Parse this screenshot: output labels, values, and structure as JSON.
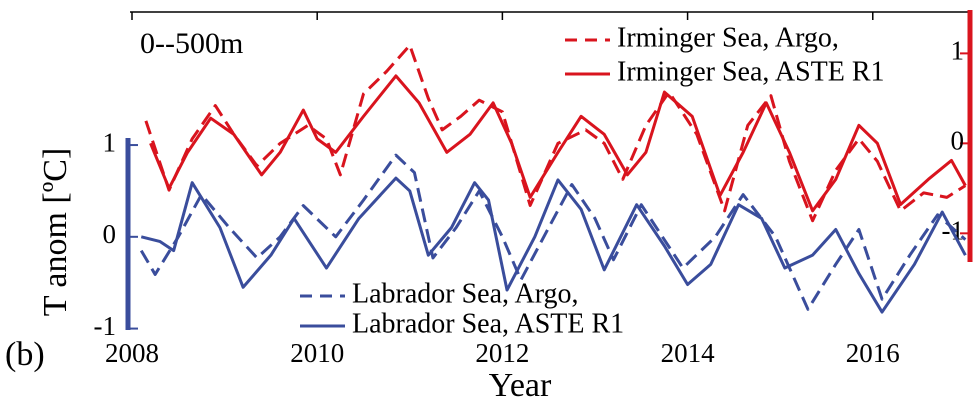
{
  "chart_data": {
    "type": "line",
    "annotation": "0--500m",
    "panel_label": "(b)",
    "xlabel": "Year",
    "ylabel": "T anom [ºC]",
    "xlim": [
      2008,
      2017.05
    ],
    "xticks": [
      2008,
      2010,
      2012,
      2014,
      2016
    ],
    "ylim": [
      -1.07,
      2.45
    ],
    "yticks": [
      -1,
      0,
      1
    ],
    "ycolor": "#3a4d9c",
    "y2lim": [
      -2.13,
      1.46
    ],
    "y2ticks": [
      -1,
      0,
      1
    ],
    "y2color": "#d9141e",
    "series": [
      {
        "name": "Irminger Sea, Argo,",
        "color": "#d9141e",
        "axis": "y2",
        "dash": true,
        "x": [
          2008.15,
          2008.4,
          2008.65,
          2008.9,
          2009.1,
          2009.35,
          2009.6,
          2009.9,
          2010.1,
          2010.25,
          2010.5,
          2010.75,
          2011.0,
          2011.2,
          2011.35,
          2011.55,
          2011.75,
          2012.0,
          2012.3,
          2012.6,
          2012.9,
          2013.1,
          2013.3,
          2013.55,
          2013.8,
          2014.1,
          2014.4,
          2014.65,
          2014.9,
          2015.1,
          2015.35,
          2015.6,
          2015.85,
          2016.05,
          2016.3,
          2016.55,
          2016.8,
          2017.0
        ],
        "values": [
          0.25,
          -0.52,
          0.05,
          0.42,
          0.1,
          -0.25,
          0.0,
          0.2,
          0.05,
          -0.35,
          0.55,
          0.8,
          1.09,
          0.5,
          0.15,
          0.3,
          0.48,
          0.35,
          -0.69,
          0.0,
          0.15,
          0.0,
          -0.4,
          0.2,
          0.57,
          0.1,
          -0.75,
          0.2,
          0.53,
          -0.2,
          -0.86,
          -0.3,
          0.05,
          -0.2,
          -0.75,
          -0.55,
          -0.6,
          -0.47
        ]
      },
      {
        "name": "Irminger Sea, ASTE R1",
        "color": "#d9141e",
        "axis": "y2",
        "dash": false,
        "x": [
          2008.2,
          2008.4,
          2008.6,
          2008.85,
          2009.1,
          2009.4,
          2009.6,
          2009.85,
          2010.0,
          2010.2,
          2010.5,
          2010.85,
          2011.1,
          2011.4,
          2011.65,
          2011.9,
          2012.1,
          2012.3,
          2012.6,
          2012.85,
          2013.1,
          2013.35,
          2013.55,
          2013.75,
          2014.05,
          2014.35,
          2014.6,
          2014.85,
          2015.1,
          2015.35,
          2015.6,
          2015.85,
          2016.05,
          2016.3,
          2016.6,
          2016.85,
          2017.0
        ],
        "values": [
          0.0,
          -0.5,
          -0.1,
          0.28,
          0.1,
          -0.35,
          -0.1,
          0.37,
          0.05,
          -0.1,
          0.3,
          0.75,
          0.45,
          -0.1,
          0.1,
          0.45,
          0.0,
          -0.6,
          -0.1,
          0.3,
          0.1,
          -0.35,
          -0.1,
          0.57,
          0.3,
          -0.58,
          -0.1,
          0.45,
          -0.1,
          -0.75,
          -0.4,
          0.2,
          0.0,
          -0.68,
          -0.4,
          -0.19,
          -0.47
        ]
      },
      {
        "name": "Labrador Sea, Argo,",
        "color": "#3a4d9c",
        "axis": "y",
        "dash": true,
        "x": [
          2008.1,
          2008.25,
          2008.5,
          2008.75,
          2009.05,
          2009.35,
          2009.6,
          2009.85,
          2010.2,
          2010.5,
          2010.85,
          2011.05,
          2011.25,
          2011.5,
          2011.75,
          2012.0,
          2012.2,
          2012.5,
          2012.75,
          2013.0,
          2013.2,
          2013.5,
          2013.95,
          2014.3,
          2014.6,
          2014.95,
          2015.3,
          2015.6,
          2015.85,
          2016.1,
          2016.4,
          2016.7,
          2017.0
        ],
        "values": [
          -0.15,
          -0.41,
          0.0,
          0.46,
          0.1,
          -0.23,
          0.0,
          0.34,
          0.0,
          0.4,
          0.89,
          0.7,
          -0.23,
          0.1,
          0.5,
          0.0,
          -0.47,
          0.1,
          0.57,
          0.2,
          -0.25,
          0.35,
          -0.34,
          0.0,
          0.46,
          0.0,
          -0.79,
          -0.3,
          0.08,
          -0.68,
          -0.2,
          0.24,
          -0.03
        ]
      },
      {
        "name": "Labrador Sea, ASTE R1",
        "color": "#3a4d9c",
        "axis": "y",
        "dash": false,
        "x": [
          2008.1,
          2008.3,
          2008.45,
          2008.65,
          2008.95,
          2009.2,
          2009.5,
          2009.75,
          2010.1,
          2010.45,
          2010.85,
          2011.0,
          2011.2,
          2011.45,
          2011.7,
          2011.85,
          2012.05,
          2012.35,
          2012.6,
          2012.85,
          2013.1,
          2013.45,
          2013.75,
          2014.0,
          2014.25,
          2014.55,
          2014.8,
          2015.05,
          2015.35,
          2015.6,
          2015.85,
          2016.1,
          2016.45,
          2016.75,
          2017.0
        ],
        "values": [
          0.0,
          -0.05,
          -0.15,
          0.59,
          0.1,
          -0.55,
          -0.2,
          0.2,
          -0.34,
          0.2,
          0.64,
          0.5,
          -0.2,
          0.1,
          0.59,
          0.4,
          -0.58,
          0.0,
          0.62,
          0.3,
          -0.36,
          0.35,
          -0.1,
          -0.52,
          -0.3,
          0.35,
          0.2,
          -0.34,
          -0.2,
          0.08,
          -0.4,
          -0.82,
          -0.3,
          0.27,
          -0.2
        ]
      }
    ]
  }
}
